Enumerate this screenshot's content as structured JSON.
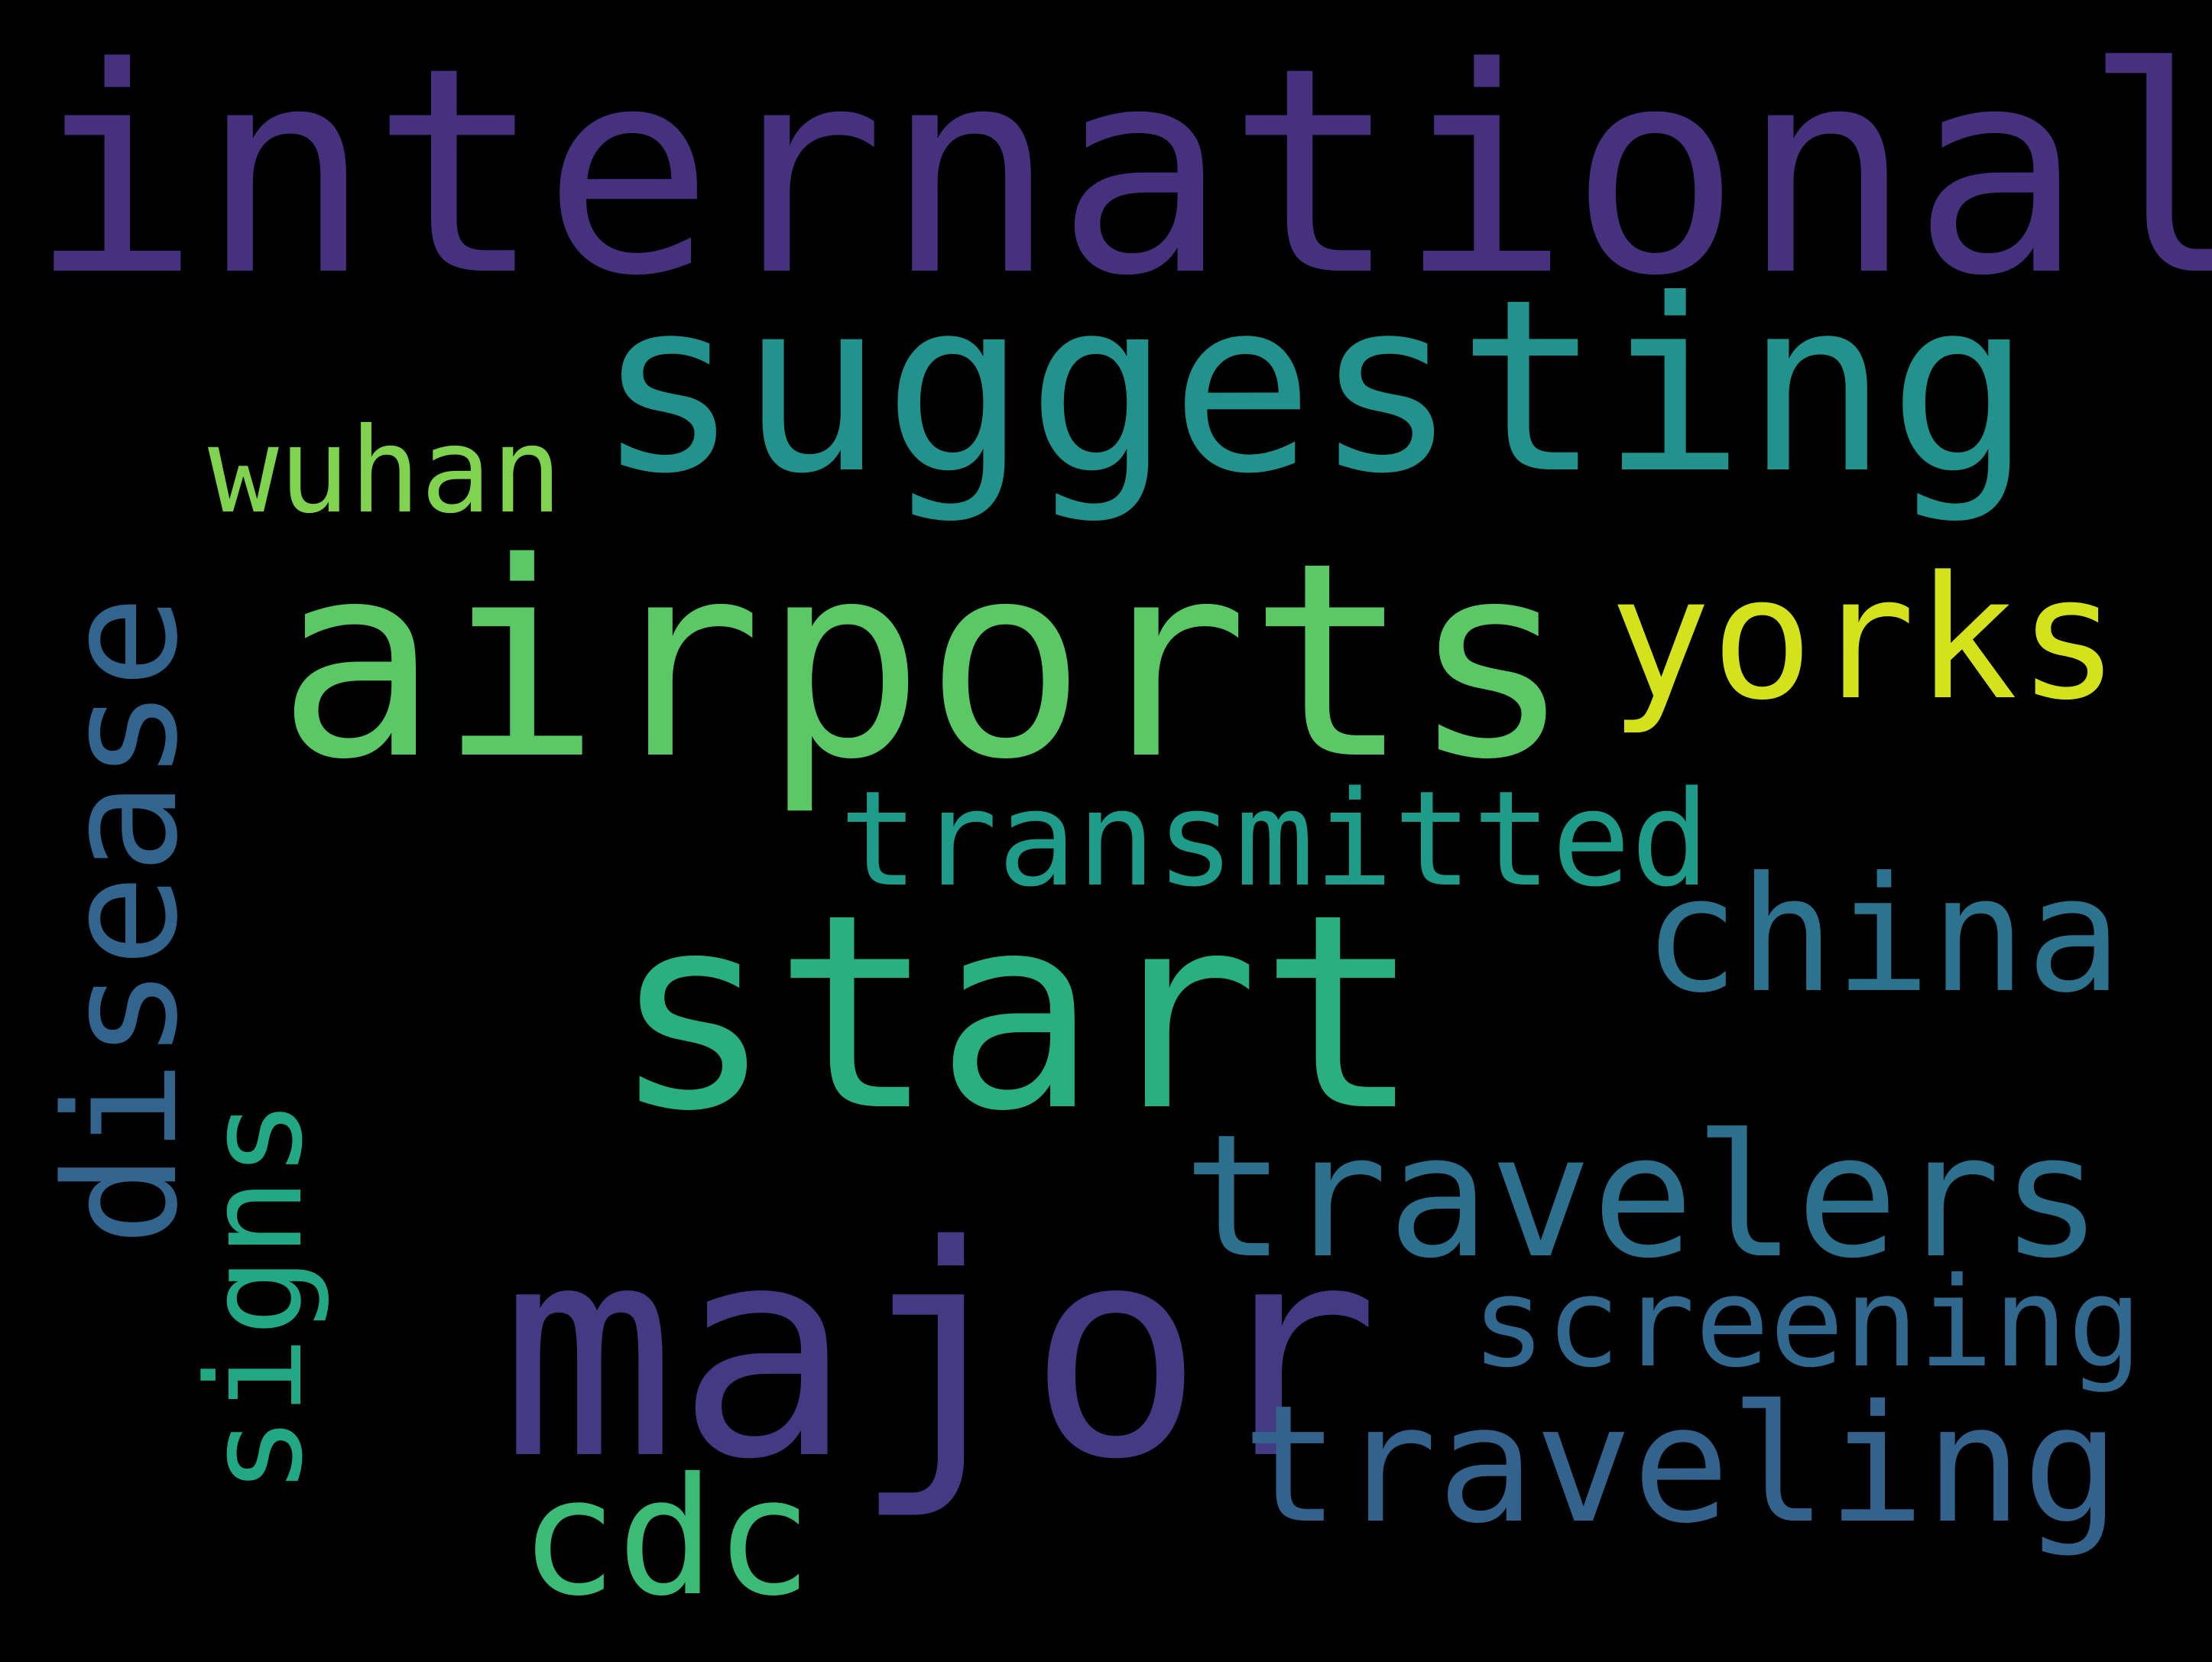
{
  "wordcloud": {
    "words": [
      {
        "id": "international",
        "text": "international",
        "color": "#45317e"
      },
      {
        "id": "suggesting",
        "text": "suggesting",
        "color": "#21928c"
      },
      {
        "id": "wuhan",
        "text": "wuhan",
        "color": "#7fd34e"
      },
      {
        "id": "airports",
        "text": "airports",
        "color": "#5ac864"
      },
      {
        "id": "yorks",
        "text": "yorks",
        "color": "#d3e21b"
      },
      {
        "id": "disease",
        "text": "disease",
        "color": "#32658e"
      },
      {
        "id": "transmitted",
        "text": "transmitted",
        "color": "#1e9c89"
      },
      {
        "id": "start",
        "text": "start",
        "color": "#2ab07f"
      },
      {
        "id": "china",
        "text": "china",
        "color": "#2c738e"
      },
      {
        "id": "signs",
        "text": "signs",
        "color": "#22a884"
      },
      {
        "id": "travelers",
        "text": "travelers",
        "color": "#2d708e"
      },
      {
        "id": "screening",
        "text": "screening",
        "color": "#31688e"
      },
      {
        "id": "major",
        "text": "major",
        "color": "#443983"
      },
      {
        "id": "traveling",
        "text": "traveling",
        "color": "#33638d"
      },
      {
        "id": "cdc",
        "text": "cdc",
        "color": "#3bbb75"
      }
    ],
    "background_color": "#000000"
  }
}
